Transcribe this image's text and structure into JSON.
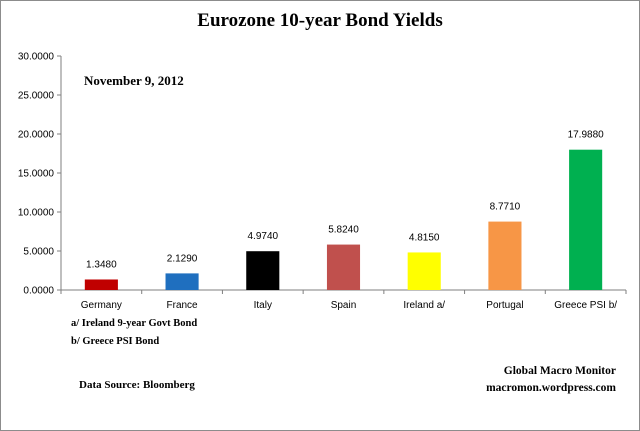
{
  "chart_data": {
    "type": "bar",
    "title": "Eurozone 10-year Bond Yields",
    "subtitle": "November 9, 2012",
    "categories": [
      "Germany",
      "France",
      "Italy",
      "Spain",
      "Ireland  a/",
      "Portugal",
      "Greece PSI b/"
    ],
    "values": [
      1.348,
      2.129,
      4.974,
      5.824,
      4.815,
      8.771,
      17.988
    ],
    "value_labels": [
      "1.3480",
      "2.1290",
      "4.9740",
      "5.8240",
      "4.8150",
      "8.7710",
      "17.9880"
    ],
    "colors": [
      "#c00000",
      "#1f6fbf",
      "#000000",
      "#c0504d",
      "#ffff00",
      "#f79646",
      "#00b050"
    ],
    "ylim": [
      0,
      30
    ],
    "yticks": [
      0,
      5,
      10,
      15,
      20,
      25,
      30
    ],
    "ytick_labels": [
      "0.0000",
      "5.0000",
      "10.0000",
      "15.0000",
      "20.0000",
      "25.0000",
      "30.0000"
    ],
    "grid": false,
    "legend": "none",
    "xlabel": "",
    "ylabel": ""
  },
  "notes": {
    "a": "a/  Ireland 9-year Govt Bond",
    "b": "b/  Greece PSI Bond"
  },
  "source": "Data Source:  Bloomberg",
  "credit": {
    "line1": "Global Macro Monitor",
    "line2": "macromon.wordpress.com"
  }
}
